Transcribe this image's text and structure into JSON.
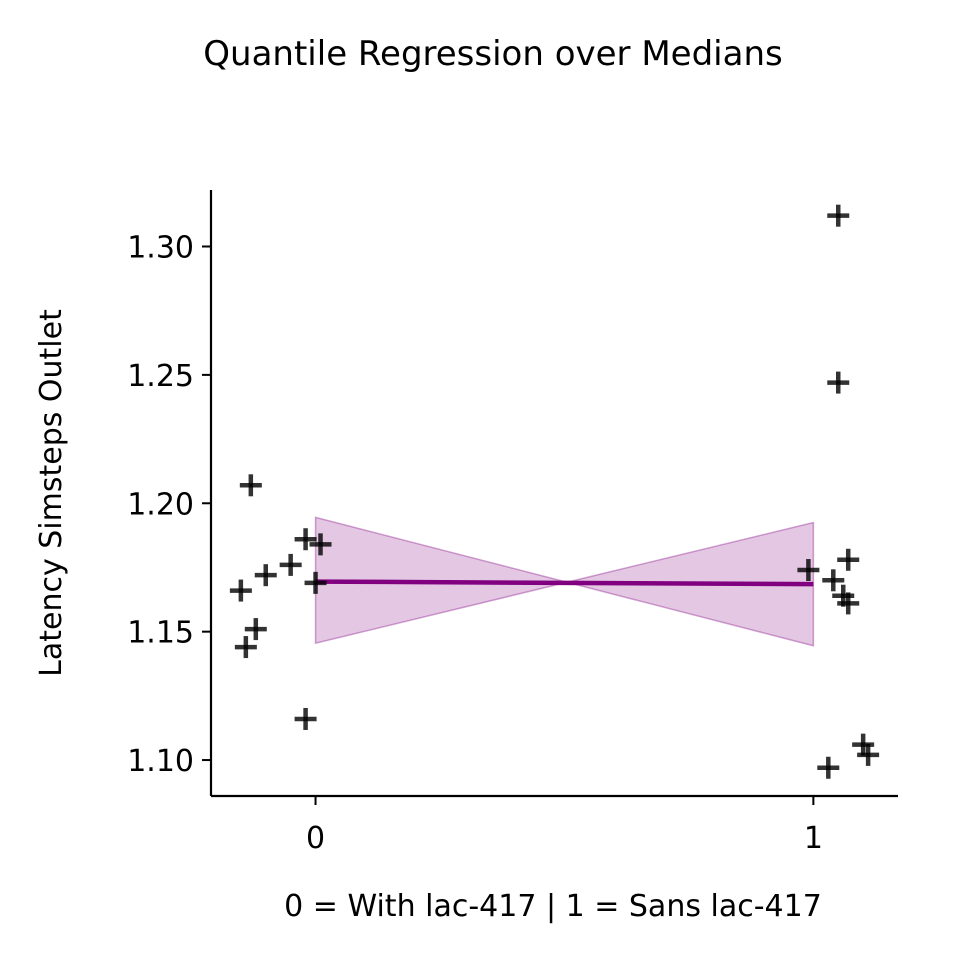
{
  "chart_data": {
    "type": "scatter",
    "title": "Quantile Regression over Medians",
    "xlabel": "0 = With lac-417 | 1 = Sans lac-417",
    "ylabel": "Latency Simsteps Outlet",
    "xlim": [
      -0.21,
      1.17
    ],
    "ylim": [
      1.086,
      1.322
    ],
    "x_ticks": [
      {
        "value": 0,
        "label": "0"
      },
      {
        "value": 1,
        "label": "1"
      }
    ],
    "y_ticks": [
      {
        "value": 1.1,
        "label": "1.10"
      },
      {
        "value": 1.15,
        "label": "1.15"
      },
      {
        "value": 1.2,
        "label": "1.20"
      },
      {
        "value": 1.25,
        "label": "1.25"
      },
      {
        "value": 1.3,
        "label": "1.30"
      }
    ],
    "grid": false,
    "series": [
      {
        "marker": "+",
        "color": "#000000",
        "points": [
          {
            "x": -0.13,
            "y": 1.207
          },
          {
            "x": -0.15,
            "y": 1.166
          },
          {
            "x": -0.14,
            "y": 1.144
          },
          {
            "x": -0.12,
            "y": 1.151
          },
          {
            "x": -0.1,
            "y": 1.172
          },
          {
            "x": -0.05,
            "y": 1.176
          },
          {
            "x": -0.02,
            "y": 1.186
          },
          {
            "x": 0.01,
            "y": 1.184
          },
          {
            "x": 0.0,
            "y": 1.169
          },
          {
            "x": -0.02,
            "y": 1.116
          },
          {
            "x": 1.05,
            "y": 1.312
          },
          {
            "x": 1.05,
            "y": 1.247
          },
          {
            "x": 0.99,
            "y": 1.174
          },
          {
            "x": 1.07,
            "y": 1.178
          },
          {
            "x": 1.04,
            "y": 1.17
          },
          {
            "x": 1.06,
            "y": 1.164
          },
          {
            "x": 1.07,
            "y": 1.161
          },
          {
            "x": 1.03,
            "y": 1.097
          },
          {
            "x": 1.1,
            "y": 1.106
          },
          {
            "x": 1.11,
            "y": 1.102
          }
        ]
      }
    ],
    "regression_line": {
      "color": "#800080",
      "points": [
        {
          "x": 0,
          "y": 1.1695
        },
        {
          "x": 1,
          "y": 1.1685
        }
      ]
    },
    "confidence_band": {
      "color": "#800080",
      "opacity": 0.22,
      "lower": [
        {
          "x": 0,
          "y": 1.1455
        },
        {
          "x": 1,
          "y": 1.1445
        }
      ],
      "upper": [
        {
          "x": 0,
          "y": 1.1945
        },
        {
          "x": 1,
          "y": 1.1925
        }
      ]
    }
  }
}
